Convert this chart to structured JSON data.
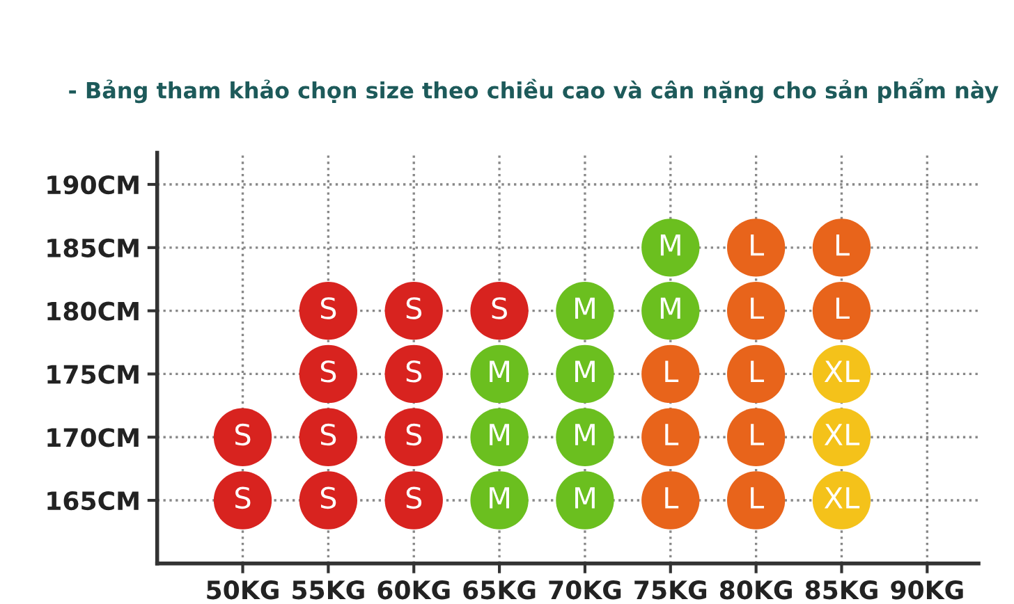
{
  "chart_data": {
    "type": "scatter",
    "title": "- Bảng tham khảo chọn size theo chiều cao và cân nặng cho sản phẩm này",
    "series": [
      {
        "color": "#d8231f",
        "x": [
          50,
          50,
          55,
          55,
          55,
          55,
          60,
          60,
          60,
          60,
          65
        ],
        "values": [
          170,
          165,
          180,
          175,
          170,
          165,
          180,
          175,
          170,
          165,
          180
        ],
        "value_labels": [
          "S",
          "S",
          "S",
          "S",
          "S",
          "S",
          "S",
          "S",
          "S",
          "S",
          "S"
        ]
      },
      {
        "color": "#6bbf1f",
        "x": [
          65,
          65,
          65,
          70,
          70,
          70,
          70,
          75,
          75
        ],
        "values": [
          175,
          170,
          165,
          180,
          175,
          170,
          165,
          185,
          180
        ],
        "value_labels": [
          "M",
          "M",
          "M",
          "M",
          "M",
          "M",
          "M",
          "M",
          "M"
        ]
      },
      {
        "color": "#e8641b",
        "x": [
          75,
          75,
          75,
          80,
          80,
          80,
          80,
          80,
          85,
          85
        ],
        "values": [
          175,
          170,
          165,
          185,
          180,
          175,
          170,
          165,
          185,
          180
        ],
        "value_labels": [
          "L",
          "L",
          "L",
          "L",
          "L",
          "L",
          "L",
          "L",
          "L",
          "L"
        ]
      },
      {
        "color": "#f4c21a",
        "x": [
          85,
          85,
          85
        ],
        "values": [
          175,
          170,
          165
        ],
        "value_labels": [
          "XL",
          "XL",
          "XL"
        ]
      }
    ],
    "xlim": [
      45,
      93
    ],
    "ylim": [
      160,
      192.5
    ],
    "xticks": [
      {
        "value": 50,
        "label": "50KG"
      },
      {
        "value": 55,
        "label": "55KG"
      },
      {
        "value": 60,
        "label": "60KG"
      },
      {
        "value": 65,
        "label": "65KG"
      },
      {
        "value": 70,
        "label": "70KG"
      },
      {
        "value": 75,
        "label": "75KG"
      },
      {
        "value": 80,
        "label": "80KG"
      },
      {
        "value": 85,
        "label": "85KG"
      },
      {
        "value": 90,
        "label": "90KG"
      }
    ],
    "yticks": [
      {
        "value": 165,
        "label": "165CM"
      },
      {
        "value": 170,
        "label": "170CM"
      },
      {
        "value": 175,
        "label": "175CM"
      },
      {
        "value": 180,
        "label": "180CM"
      },
      {
        "value": 185,
        "label": "185CM"
      },
      {
        "value": 190,
        "label": "190CM"
      }
    ],
    "grid": true,
    "marker": "circle",
    "legend": false
  }
}
